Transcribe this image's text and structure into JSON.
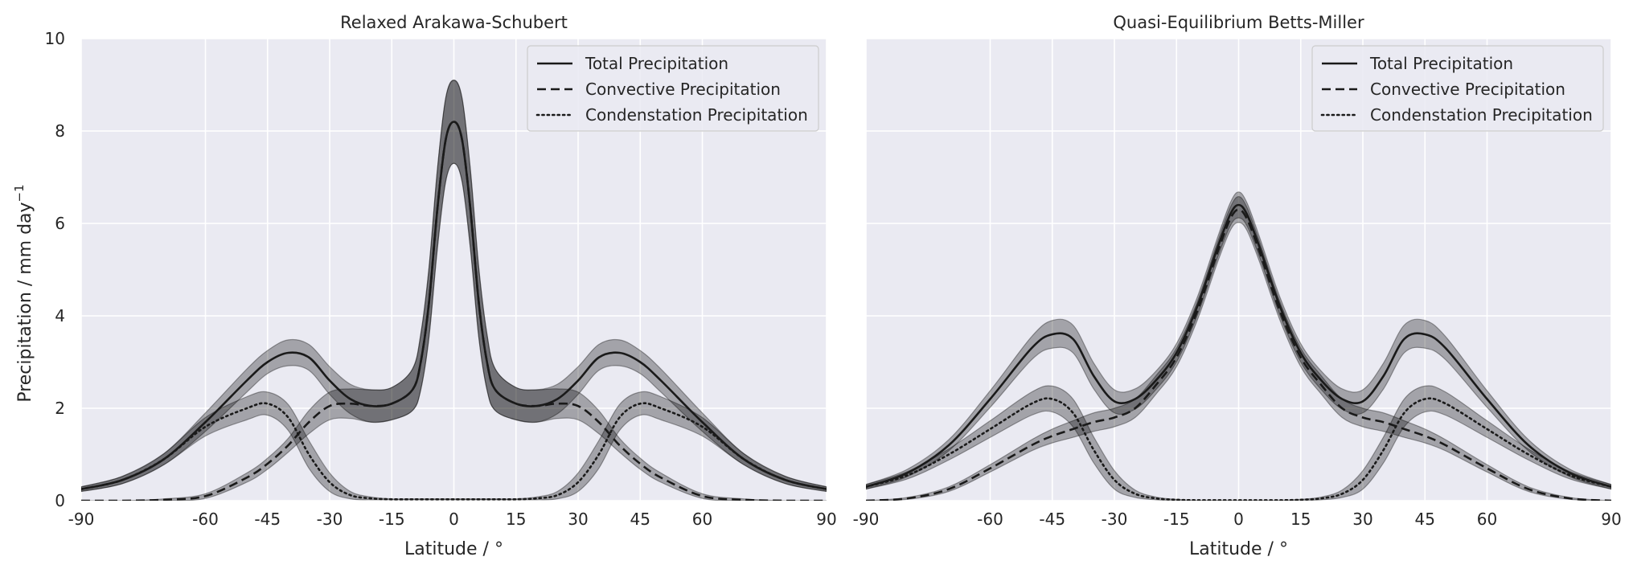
{
  "figure": {
    "ylabel": "Precipitation / mm day",
    "ylabel_sup": "−1"
  },
  "chart_data": [
    {
      "type": "line",
      "title": "Relaxed Arakawa-Schubert",
      "xlabel": "Latitude / °",
      "ylabel": "Precipitation / mm day−1",
      "xlim": [
        -90,
        90
      ],
      "ylim": [
        0,
        10
      ],
      "xticks": [
        -90,
        -60,
        -45,
        -30,
        -15,
        0,
        15,
        30,
        45,
        60,
        90
      ],
      "xtick_labels": [
        "-90",
        "-60",
        "-45",
        "-30",
        "-15",
        "0",
        "15",
        "30",
        "45",
        "60",
        "90"
      ],
      "yticks": [
        0,
        2,
        4,
        6,
        8,
        10
      ],
      "ytick_labels": [
        "0",
        "2",
        "4",
        "6",
        "8",
        "10"
      ],
      "grid": true,
      "legend": "top-right",
      "x": [
        -90,
        -80,
        -70,
        -60,
        -50,
        -45,
        -40,
        -35,
        -30,
        -25,
        -20,
        -15,
        -10,
        -8,
        -6,
        -4,
        -2,
        0,
        2,
        4,
        6,
        8,
        10,
        15,
        20,
        25,
        30,
        35,
        40,
        45,
        50,
        60,
        70,
        80,
        90
      ],
      "series": [
        {
          "name": "Total Precipitation",
          "linestyle": "solid",
          "values": [
            0.25,
            0.45,
            0.9,
            1.7,
            2.6,
            3.0,
            3.2,
            3.1,
            2.6,
            2.2,
            2.05,
            2.1,
            2.4,
            3.0,
            4.3,
            6.3,
            7.8,
            8.2,
            7.8,
            6.3,
            4.3,
            3.0,
            2.4,
            2.1,
            2.05,
            2.2,
            2.6,
            3.1,
            3.2,
            3.0,
            2.6,
            1.7,
            0.9,
            0.45,
            0.25
          ],
          "band_width": [
            0.05,
            0.08,
            0.12,
            0.2,
            0.25,
            0.25,
            0.28,
            0.28,
            0.3,
            0.32,
            0.35,
            0.35,
            0.45,
            0.6,
            0.75,
            0.85,
            0.9,
            0.9,
            0.9,
            0.85,
            0.75,
            0.6,
            0.45,
            0.35,
            0.35,
            0.32,
            0.3,
            0.28,
            0.28,
            0.25,
            0.25,
            0.2,
            0.12,
            0.08,
            0.05
          ]
        },
        {
          "name": "Convective Precipitation",
          "linestyle": "dashed",
          "values": [
            0.0,
            0.0,
            0.02,
            0.1,
            0.5,
            0.8,
            1.2,
            1.7,
            2.05,
            2.1,
            2.05,
            2.1,
            2.4,
            3.0,
            4.3,
            6.3,
            7.8,
            8.2,
            7.8,
            6.3,
            4.3,
            3.0,
            2.4,
            2.1,
            2.05,
            2.1,
            2.05,
            1.7,
            1.2,
            0.8,
            0.5,
            0.1,
            0.02,
            0.0,
            0.0
          ],
          "band_width": [
            0.0,
            0.0,
            0.02,
            0.05,
            0.1,
            0.12,
            0.15,
            0.25,
            0.3,
            0.32,
            0.35,
            0.35,
            0.45,
            0.6,
            0.75,
            0.85,
            0.9,
            0.9,
            0.9,
            0.85,
            0.75,
            0.6,
            0.45,
            0.35,
            0.35,
            0.32,
            0.3,
            0.25,
            0.15,
            0.12,
            0.1,
            0.05,
            0.02,
            0.0,
            0.0
          ]
        },
        {
          "name": "Condenstation Precipitation",
          "linestyle": "dotted",
          "values": [
            0.25,
            0.45,
            0.9,
            1.6,
            2.0,
            2.1,
            1.8,
            1.0,
            0.4,
            0.12,
            0.05,
            0.03,
            0.03,
            0.03,
            0.03,
            0.03,
            0.03,
            0.03,
            0.03,
            0.03,
            0.03,
            0.03,
            0.03,
            0.03,
            0.05,
            0.12,
            0.4,
            1.0,
            1.8,
            2.1,
            2.0,
            1.6,
            0.9,
            0.45,
            0.25
          ],
          "band_width": [
            0.05,
            0.08,
            0.12,
            0.2,
            0.25,
            0.25,
            0.28,
            0.3,
            0.2,
            0.08,
            0.03,
            0.01,
            0.01,
            0.01,
            0.01,
            0.01,
            0.01,
            0.01,
            0.01,
            0.01,
            0.01,
            0.01,
            0.01,
            0.01,
            0.03,
            0.08,
            0.2,
            0.3,
            0.28,
            0.25,
            0.25,
            0.2,
            0.12,
            0.08,
            0.05
          ]
        }
      ]
    },
    {
      "type": "line",
      "title": "Quasi-Equilibrium Betts-Miller",
      "xlabel": "Latitude / °",
      "xlim": [
        -90,
        90
      ],
      "ylim": [
        0,
        10
      ],
      "xticks": [
        -90,
        -60,
        -45,
        -30,
        -15,
        0,
        15,
        30,
        45,
        60,
        90
      ],
      "xtick_labels": [
        "-90",
        "-60",
        "-45",
        "-30",
        "-15",
        "0",
        "15",
        "30",
        "45",
        "60",
        "90"
      ],
      "yticks": [
        0,
        2,
        4,
        6,
        8,
        10
      ],
      "grid": true,
      "legend": "top-right",
      "x": [
        -90,
        -80,
        -70,
        -60,
        -50,
        -45,
        -40,
        -35,
        -30,
        -25,
        -20,
        -15,
        -10,
        -5,
        -2,
        0,
        2,
        5,
        10,
        15,
        20,
        25,
        30,
        35,
        40,
        45,
        50,
        60,
        70,
        80,
        90
      ],
      "series": [
        {
          "name": "Total Precipitation",
          "linestyle": "solid",
          "values": [
            0.3,
            0.6,
            1.2,
            2.2,
            3.3,
            3.6,
            3.5,
            2.7,
            2.15,
            2.2,
            2.6,
            3.2,
            4.2,
            5.5,
            6.2,
            6.4,
            6.2,
            5.5,
            4.2,
            3.2,
            2.6,
            2.2,
            2.15,
            2.7,
            3.5,
            3.6,
            3.3,
            2.2,
            1.2,
            0.6,
            0.3
          ],
          "band_width": [
            0.05,
            0.08,
            0.12,
            0.18,
            0.25,
            0.3,
            0.3,
            0.28,
            0.25,
            0.22,
            0.2,
            0.2,
            0.2,
            0.22,
            0.25,
            0.28,
            0.25,
            0.22,
            0.2,
            0.2,
            0.2,
            0.22,
            0.25,
            0.28,
            0.3,
            0.3,
            0.25,
            0.18,
            0.12,
            0.08,
            0.05
          ]
        },
        {
          "name": "Convective Precipitation",
          "linestyle": "dashed",
          "values": [
            0.0,
            0.05,
            0.25,
            0.7,
            1.2,
            1.4,
            1.55,
            1.7,
            1.8,
            2.0,
            2.5,
            3.1,
            4.1,
            5.4,
            6.1,
            6.3,
            6.1,
            5.4,
            4.1,
            3.1,
            2.5,
            2.0,
            1.8,
            1.7,
            1.55,
            1.4,
            1.2,
            0.7,
            0.25,
            0.05,
            0.0
          ],
          "band_width": [
            0.0,
            0.02,
            0.05,
            0.08,
            0.12,
            0.15,
            0.18,
            0.2,
            0.2,
            0.2,
            0.2,
            0.2,
            0.2,
            0.22,
            0.25,
            0.28,
            0.25,
            0.22,
            0.2,
            0.2,
            0.2,
            0.2,
            0.2,
            0.2,
            0.18,
            0.15,
            0.12,
            0.08,
            0.05,
            0.02,
            0.0
          ]
        },
        {
          "name": "Condenstation Precipitation",
          "linestyle": "dotted",
          "values": [
            0.3,
            0.55,
            1.0,
            1.55,
            2.1,
            2.2,
            1.9,
            1.1,
            0.45,
            0.15,
            0.05,
            0.02,
            0.01,
            0.01,
            0.01,
            0.01,
            0.01,
            0.01,
            0.01,
            0.02,
            0.05,
            0.15,
            0.45,
            1.1,
            1.9,
            2.2,
            2.1,
            1.55,
            1.0,
            0.55,
            0.3
          ],
          "band_width": [
            0.05,
            0.08,
            0.12,
            0.18,
            0.25,
            0.28,
            0.3,
            0.28,
            0.2,
            0.08,
            0.03,
            0.01,
            0.0,
            0.0,
            0.0,
            0.0,
            0.0,
            0.0,
            0.0,
            0.01,
            0.03,
            0.08,
            0.2,
            0.28,
            0.3,
            0.28,
            0.25,
            0.18,
            0.12,
            0.08,
            0.05
          ]
        }
      ]
    }
  ],
  "colors": {
    "axes_bg": "#eaeaf2",
    "grid": "#ffffff",
    "line": "#1a1a1a",
    "band": "#000000",
    "text": "#262626"
  }
}
